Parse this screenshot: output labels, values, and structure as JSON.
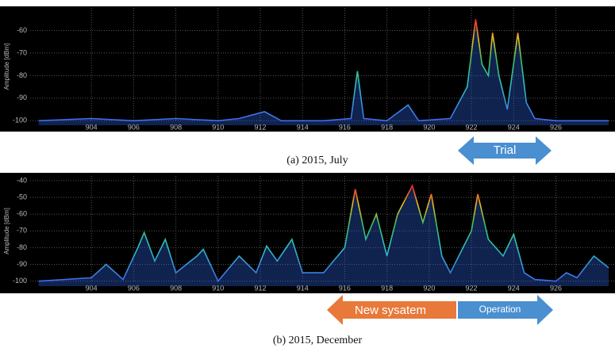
{
  "chart_data": [
    {
      "type": "line",
      "title": "(a) 2015, July",
      "y_label": "Amplitude [dBm]",
      "x": [
        901.5,
        904,
        906,
        908,
        910,
        911,
        912.2,
        913,
        915,
        916.3,
        916.6,
        916.9,
        918,
        919,
        919.5,
        921,
        921.8,
        922.2,
        922.5,
        922.8,
        923,
        923.3,
        923.7,
        924.2,
        924.6,
        925,
        926,
        928.5
      ],
      "series": [
        {
          "color": "#2f62e0",
          "values": [
            -100,
            -99,
            -100,
            -99,
            -100,
            -99,
            -96,
            -100,
            -100,
            -99,
            -78,
            -99,
            -100,
            -93,
            -100,
            -99,
            -85,
            -55,
            -75,
            -80,
            -61,
            -80,
            -95,
            -61,
            -92,
            -99,
            -100,
            -100
          ]
        }
      ],
      "xlim": [
        901.1,
        928.8
      ],
      "xticks": [
        904,
        906,
        908,
        910,
        912,
        914,
        916,
        918,
        920,
        922,
        924,
        926
      ],
      "ylim": [
        -102,
        -50
      ],
      "yticks": [
        -60,
        -70,
        -80,
        -90,
        -100
      ],
      "grid": true,
      "annotations": [
        "Trial"
      ]
    },
    {
      "type": "line",
      "title": "(b) 2015, December",
      "y_label": "Amplitude [dBm]",
      "x": [
        901.5,
        904,
        904.7,
        905.5,
        906.2,
        906.5,
        907,
        907.5,
        908,
        909,
        909.3,
        910,
        911,
        911.8,
        912.3,
        912.8,
        913.5,
        914,
        915,
        916,
        916.5,
        917,
        917.5,
        918,
        918.5,
        919.2,
        919.7,
        920.1,
        920.6,
        921,
        922,
        922.3,
        922.8,
        923.5,
        924,
        924.5,
        925,
        926,
        926.5,
        927,
        927.8,
        928.5
      ],
      "series": [
        {
          "color": "#2f62e0",
          "values": [
            -100,
            -98,
            -90,
            -99,
            -80,
            -71,
            -88,
            -75,
            -95,
            -85,
            -81,
            -100,
            -85,
            -95,
            -79,
            -88,
            -75,
            -95,
            -95,
            -80,
            -45,
            -75,
            -60,
            -85,
            -60,
            -43,
            -65,
            -48,
            -85,
            -95,
            -70,
            -48,
            -75,
            -85,
            -72,
            -95,
            -99,
            -100,
            -95,
            -98,
            -85,
            -92
          ]
        }
      ],
      "xlim": [
        901.1,
        928.8
      ],
      "xticks": [
        904,
        906,
        908,
        910,
        912,
        914,
        916,
        918,
        920,
        922,
        924,
        926
      ],
      "ylim": [
        -103,
        -37.2
      ],
      "yticks": [
        -40,
        -50,
        -60,
        -70,
        -80,
        -90,
        -100
      ],
      "grid": true,
      "annotations": [
        "New sysatem",
        "Operation"
      ]
    }
  ]
}
